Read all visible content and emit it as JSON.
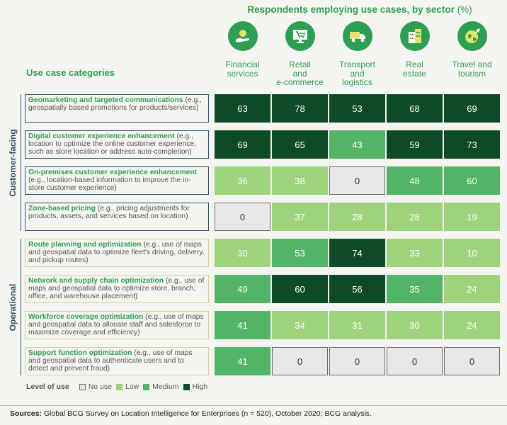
{
  "chart_data": {
    "type": "table",
    "title": "Respondents employing use cases, by sector",
    "title_unit": "(%)",
    "row_header": "Use case categories",
    "sectors": [
      {
        "label_lines": [
          "Financial",
          "services"
        ],
        "icon": "coin-hand-icon"
      },
      {
        "label_lines": [
          "Retail",
          "and",
          "e-commerce"
        ],
        "icon": "shopping-cart-monitor-icon"
      },
      {
        "label_lines": [
          "Transport",
          "and",
          "logistics"
        ],
        "icon": "truck-icon"
      },
      {
        "label_lines": [
          "Real",
          "estate"
        ],
        "icon": "buildings-icon"
      },
      {
        "label_lines": [
          "Travel and",
          "tourism"
        ],
        "icon": "globe-plane-icon"
      }
    ],
    "groups": [
      {
        "label": "Customer-facing",
        "rows": [
          0,
          1,
          2,
          3
        ]
      },
      {
        "label": "Operational",
        "rows": [
          4,
          5,
          6,
          7
        ]
      }
    ],
    "rows": [
      {
        "name": "Geomarketing and targeted communications",
        "desc": "(e.g., geospatially based promotions for products/services)",
        "values": [
          63,
          78,
          53,
          68,
          69
        ],
        "levels": [
          "high",
          "high",
          "high",
          "high",
          "high"
        ]
      },
      {
        "name": "Digital customer experience enhancement",
        "desc": "(e.g., location to optimize the online customer experience, such as store location or address auto-completion)",
        "values": [
          69,
          65,
          43,
          59,
          73
        ],
        "levels": [
          "high",
          "high",
          "medium",
          "high",
          "high"
        ]
      },
      {
        "name": "On-premises customer experience enhancement",
        "desc": "(e.g., location-based information to improve the in-store customer experience)",
        "values": [
          36,
          38,
          0,
          48,
          60
        ],
        "levels": [
          "low",
          "low",
          "none",
          "medium",
          "medium"
        ]
      },
      {
        "name": "Zone-based pricing",
        "desc": "(e.g., pricing adjustments for products, assets, and services based on location)",
        "values": [
          0,
          37,
          28,
          28,
          19
        ],
        "levels": [
          "none",
          "low",
          "low",
          "low",
          "low"
        ]
      },
      {
        "name": "Route planning and optimization",
        "desc": "(e.g., use of maps and geospatial data to optimize fleet's driving, delivery, and pickup routes)",
        "values": [
          30,
          53,
          74,
          33,
          10
        ],
        "levels": [
          "low",
          "medium",
          "high",
          "low",
          "low"
        ]
      },
      {
        "name": "Network and supply chain optimization",
        "desc": "(e.g., use of maps and geospatial data to optimize store, branch, office, and warehouse placement)",
        "values": [
          49,
          60,
          56,
          35,
          24
        ],
        "levels": [
          "medium",
          "high",
          "high",
          "medium",
          "low"
        ]
      },
      {
        "name": "Workforce coverage optimization",
        "desc": "(e.g., use of maps and geospatial data to allocate staff and salesforce to maximize coverage and efficiency)",
        "values": [
          41,
          34,
          31,
          30,
          24
        ],
        "levels": [
          "medium",
          "low",
          "low",
          "low",
          "low"
        ]
      },
      {
        "name": "Support function optimization",
        "desc": "(e.g., use of maps and geospatial data to authenticate users and to detect and prevent fraud)",
        "values": [
          41,
          0,
          0,
          0,
          0
        ],
        "levels": [
          "medium",
          "none",
          "none",
          "none",
          "none"
        ]
      }
    ],
    "legend": {
      "title": "Level of use",
      "items": [
        {
          "key": "none",
          "label": "No use",
          "color": "#e8e8e8"
        },
        {
          "key": "low",
          "label": "Low",
          "color": "#9fd27c"
        },
        {
          "key": "medium",
          "label": "Medium",
          "color": "#53b468"
        },
        {
          "key": "high",
          "label": "High",
          "color": "#0d4a25"
        }
      ]
    }
  },
  "colors": {
    "accent": "#2e9e52",
    "navy": "#2f4f6a"
  },
  "footer": {
    "sources_label": "Sources:",
    "sources_text": " Global BCG Survey on Location Intelligence for Enterprises (n = 520), October 2020; BCG analysis."
  }
}
